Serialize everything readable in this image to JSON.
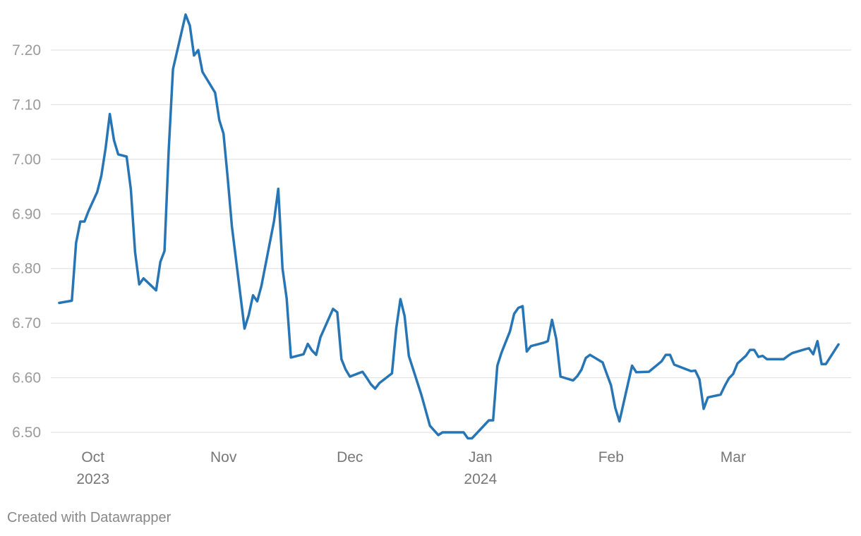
{
  "chart_data": {
    "type": "line",
    "ylim": [
      6.5,
      7.2
    ],
    "yticks": [
      6.5,
      6.6,
      6.7,
      6.8,
      6.9,
      7.0,
      7.1,
      7.2
    ],
    "ytick_labels": [
      "6.50",
      "6.60",
      "6.70",
      "6.80",
      "6.90",
      "7.00",
      "7.10",
      "7.20"
    ],
    "xlim": [
      "2023-09-21",
      "2024-03-29"
    ],
    "xticks": [
      {
        "date": "2023-10-01",
        "label": "Oct",
        "sublabel": "2023"
      },
      {
        "date": "2023-11-01",
        "label": "Nov",
        "sublabel": ""
      },
      {
        "date": "2023-12-01",
        "label": "Dec",
        "sublabel": ""
      },
      {
        "date": "2024-01-01",
        "label": "Jan",
        "sublabel": "2024"
      },
      {
        "date": "2024-02-01",
        "label": "Feb",
        "sublabel": ""
      },
      {
        "date": "2024-03-01",
        "label": "Mar",
        "sublabel": ""
      }
    ],
    "grid": true,
    "series": [
      {
        "color": "#2775b4",
        "points": [
          [
            "2023-09-23",
            6.737
          ],
          [
            "2023-09-26",
            6.741
          ],
          [
            "2023-09-27",
            6.847
          ],
          [
            "2023-09-28",
            6.886
          ],
          [
            "2023-09-29",
            6.886
          ],
          [
            "2023-09-30",
            6.906
          ],
          [
            "2023-10-02",
            6.94
          ],
          [
            "2023-10-03",
            6.97
          ],
          [
            "2023-10-04",
            7.02
          ],
          [
            "2023-10-05",
            7.083
          ],
          [
            "2023-10-06",
            7.035
          ],
          [
            "2023-10-07",
            7.009
          ],
          [
            "2023-10-09",
            7.005
          ],
          [
            "2023-10-10",
            6.945
          ],
          [
            "2023-10-11",
            6.83
          ],
          [
            "2023-10-12",
            6.771
          ],
          [
            "2023-10-13",
            6.782
          ],
          [
            "2023-10-16",
            6.76
          ],
          [
            "2023-10-17",
            6.812
          ],
          [
            "2023-10-18",
            6.832
          ],
          [
            "2023-10-19",
            7.018
          ],
          [
            "2023-10-20",
            7.165
          ],
          [
            "2023-10-23",
            7.265
          ],
          [
            "2023-10-24",
            7.245
          ],
          [
            "2023-10-25",
            7.19
          ],
          [
            "2023-10-26",
            7.2
          ],
          [
            "2023-10-27",
            7.16
          ],
          [
            "2023-10-30",
            7.122
          ],
          [
            "2023-10-31",
            7.072
          ],
          [
            "2023-11-01",
            7.047
          ],
          [
            "2023-11-02",
            6.965
          ],
          [
            "2023-11-03",
            6.877
          ],
          [
            "2023-11-06",
            6.69
          ],
          [
            "2023-11-07",
            6.715
          ],
          [
            "2023-11-08",
            6.751
          ],
          [
            "2023-11-09",
            6.74
          ],
          [
            "2023-11-10",
            6.768
          ],
          [
            "2023-11-13",
            6.887
          ],
          [
            "2023-11-14",
            6.946
          ],
          [
            "2023-11-15",
            6.8
          ],
          [
            "2023-11-16",
            6.745
          ],
          [
            "2023-11-17",
            6.637
          ],
          [
            "2023-11-20",
            6.643
          ],
          [
            "2023-11-21",
            6.662
          ],
          [
            "2023-11-22",
            6.65
          ],
          [
            "2023-11-23",
            6.642
          ],
          [
            "2023-11-24",
            6.674
          ],
          [
            "2023-11-27",
            6.726
          ],
          [
            "2023-11-28",
            6.72
          ],
          [
            "2023-11-29",
            6.634
          ],
          [
            "2023-11-30",
            6.615
          ],
          [
            "2023-12-01",
            6.602
          ],
          [
            "2023-12-04",
            6.611
          ],
          [
            "2023-12-05",
            6.6
          ],
          [
            "2023-12-06",
            6.588
          ],
          [
            "2023-12-07",
            6.58
          ],
          [
            "2023-12-08",
            6.59
          ],
          [
            "2023-12-11",
            6.608
          ],
          [
            "2023-12-12",
            6.69
          ],
          [
            "2023-12-13",
            6.744
          ],
          [
            "2023-12-14",
            6.713
          ],
          [
            "2023-12-15",
            6.64
          ],
          [
            "2023-12-18",
            6.568
          ],
          [
            "2023-12-20",
            6.512
          ],
          [
            "2023-12-22",
            6.495
          ],
          [
            "2023-12-23",
            6.5
          ],
          [
            "2023-12-28",
            6.5
          ],
          [
            "2023-12-29",
            6.489
          ],
          [
            "2023-12-30",
            6.489
          ],
          [
            "2024-01-03",
            6.522
          ],
          [
            "2024-01-04",
            6.522
          ],
          [
            "2024-01-05",
            6.622
          ],
          [
            "2024-01-06",
            6.646
          ],
          [
            "2024-01-08",
            6.685
          ],
          [
            "2024-01-09",
            6.717
          ],
          [
            "2024-01-10",
            6.728
          ],
          [
            "2024-01-11",
            6.731
          ],
          [
            "2024-01-12",
            6.648
          ],
          [
            "2024-01-13",
            6.658
          ],
          [
            "2024-01-16",
            6.664
          ],
          [
            "2024-01-17",
            6.667
          ],
          [
            "2024-01-18",
            6.706
          ],
          [
            "2024-01-19",
            6.671
          ],
          [
            "2024-01-20",
            6.602
          ],
          [
            "2024-01-23",
            6.595
          ],
          [
            "2024-01-24",
            6.603
          ],
          [
            "2024-01-25",
            6.615
          ],
          [
            "2024-01-26",
            6.636
          ],
          [
            "2024-01-27",
            6.642
          ],
          [
            "2024-01-30",
            6.628
          ],
          [
            "2024-01-31",
            6.607
          ],
          [
            "2024-02-01",
            6.586
          ],
          [
            "2024-02-02",
            6.545
          ],
          [
            "2024-02-03",
            6.52
          ],
          [
            "2024-02-06",
            6.622
          ],
          [
            "2024-02-07",
            6.61
          ],
          [
            "2024-02-10",
            6.611
          ],
          [
            "2024-02-13",
            6.63
          ],
          [
            "2024-02-14",
            6.642
          ],
          [
            "2024-02-15",
            6.642
          ],
          [
            "2024-02-16",
            6.624
          ],
          [
            "2024-02-20",
            6.612
          ],
          [
            "2024-02-21",
            6.613
          ],
          [
            "2024-02-22",
            6.597
          ],
          [
            "2024-02-23",
            6.543
          ],
          [
            "2024-02-24",
            6.564
          ],
          [
            "2024-02-27",
            6.569
          ],
          [
            "2024-02-28",
            6.585
          ],
          [
            "2024-02-29",
            6.599
          ],
          [
            "2024-03-01",
            6.607
          ],
          [
            "2024-03-02",
            6.626
          ],
          [
            "2024-03-04",
            6.64
          ],
          [
            "2024-03-05",
            6.651
          ],
          [
            "2024-03-06",
            6.651
          ],
          [
            "2024-03-07",
            6.638
          ],
          [
            "2024-03-08",
            6.64
          ],
          [
            "2024-03-09",
            6.634
          ],
          [
            "2024-03-13",
            6.634
          ],
          [
            "2024-03-14",
            6.64
          ],
          [
            "2024-03-15",
            6.645
          ],
          [
            "2024-03-18",
            6.652
          ],
          [
            "2024-03-19",
            6.654
          ],
          [
            "2024-03-20",
            6.643
          ],
          [
            "2024-03-21",
            6.667
          ],
          [
            "2024-03-22",
            6.625
          ],
          [
            "2024-03-23",
            6.625
          ],
          [
            "2024-03-26",
            6.661
          ]
        ]
      }
    ]
  },
  "credit": "Created with Datawrapper"
}
